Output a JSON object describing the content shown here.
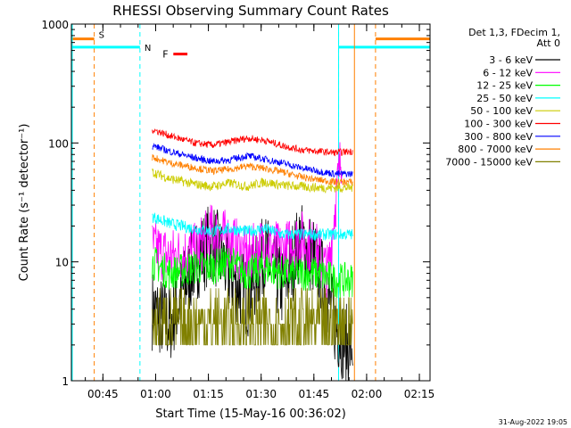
{
  "chart_data": {
    "type": "line",
    "title": "RHESSI Observing Summary Count Rates",
    "xlabel": "Start Time (15-May-16 00:36:02)",
    "ylabel": "Count Rate (s⁻¹ detector⁻¹)",
    "x_unit": "minutes since 00:36:02",
    "xlim": [
      0,
      102
    ],
    "ylim": [
      1,
      1000
    ],
    "yscale": "log",
    "x_ticks": [
      "00:45",
      "01:00",
      "01:15",
      "01:30",
      "01:45",
      "02:00",
      "02:15"
    ],
    "y_ticks": [
      "1",
      "10",
      "100",
      "1000"
    ],
    "legend_header": [
      "Det 1,3, FDecim 1,",
      "Att 0"
    ],
    "legend_position": "right",
    "series": [
      {
        "name": "3 - 6 keV",
        "color": "#000000",
        "x": [
          23,
          28,
          35,
          40,
          45,
          50,
          55,
          60,
          65,
          70,
          75,
          78,
          80
        ],
        "values": [
          4,
          3,
          10,
          15,
          8,
          5,
          12,
          6,
          15,
          10,
          3,
          2,
          2
        ]
      },
      {
        "name": "6 - 12 keV",
        "color": "#ff00ff",
        "x": [
          23,
          28,
          35,
          40,
          45,
          50,
          55,
          60,
          65,
          70,
          73,
          75,
          77
        ],
        "values": [
          13,
          11,
          12,
          18,
          15,
          11,
          14,
          12,
          16,
          12,
          8,
          30,
          90
        ]
      },
      {
        "name": "12 - 25 keV",
        "color": "#00ff00",
        "x": [
          23,
          28,
          35,
          40,
          45,
          50,
          55,
          60,
          65,
          70,
          75,
          80
        ],
        "values": [
          10,
          8,
          9,
          9,
          10,
          8,
          9,
          8,
          8,
          8,
          7,
          7
        ]
      },
      {
        "name": "25 - 50 keV",
        "color": "#00ffff",
        "x": [
          23,
          28,
          35,
          40,
          45,
          50,
          55,
          60,
          65,
          70,
          75,
          80
        ],
        "values": [
          24,
          21,
          19,
          18,
          19,
          18,
          19,
          17,
          17,
          17,
          17,
          17
        ]
      },
      {
        "name": "50 - 100 keV",
        "color": "#cccc00",
        "x": [
          23,
          28,
          35,
          40,
          45,
          50,
          55,
          60,
          65,
          70,
          75,
          80
        ],
        "values": [
          57,
          50,
          45,
          43,
          46,
          43,
          47,
          44,
          43,
          42,
          42,
          42
        ]
      },
      {
        "name": "100 - 300 keV",
        "color": "#ff0000",
        "x": [
          23,
          28,
          35,
          40,
          45,
          50,
          55,
          60,
          65,
          70,
          75,
          80
        ],
        "values": [
          130,
          115,
          100,
          96,
          102,
          110,
          105,
          95,
          88,
          85,
          83,
          85
        ]
      },
      {
        "name": "300 - 800 keV",
        "color": "#0000ff",
        "x": [
          23,
          28,
          35,
          40,
          45,
          50,
          55,
          60,
          65,
          70,
          75,
          80
        ],
        "values": [
          95,
          85,
          75,
          70,
          72,
          78,
          73,
          68,
          62,
          58,
          55,
          55
        ]
      },
      {
        "name": "800 - 7000 keV",
        "color": "#ff8000",
        "x": [
          23,
          28,
          35,
          40,
          45,
          50,
          55,
          60,
          65,
          70,
          75,
          80
        ],
        "values": [
          76,
          68,
          62,
          58,
          60,
          64,
          61,
          57,
          52,
          49,
          47,
          47
        ]
      },
      {
        "name": "7000 - 15000 keV",
        "color": "#808000",
        "x": [
          23,
          28,
          35,
          40,
          45,
          50,
          55,
          60,
          65,
          70,
          75,
          80
        ],
        "values": [
          3,
          3,
          3,
          3,
          3,
          3,
          3,
          3,
          3,
          3,
          3,
          3
        ]
      }
    ],
    "flag_lines": [
      {
        "label": "S",
        "color": "#ff8000",
        "x": 6.5,
        "x_end": 86.5
      },
      {
        "label": "N",
        "color": "#00ffff",
        "x": 19.5,
        "x_end": 76
      }
    ],
    "flare_marker": {
      "label": "F",
      "color": "#ff0000",
      "x": [
        29,
        33
      ]
    }
  },
  "footer_date": "31-Aug-2022 19:05"
}
